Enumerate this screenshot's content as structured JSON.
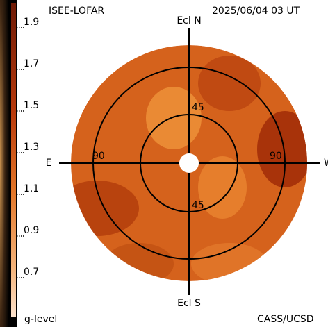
{
  "header": {
    "title": "ISEE-LOFAR",
    "timestamp": "2025/06/04 03 UT"
  },
  "colorbar": {
    "ticks": [
      "1.9",
      "1.7",
      "1.5",
      "1.3",
      "1.1",
      "0.9",
      "0.7"
    ],
    "label": "g-level"
  },
  "plot": {
    "north": "Ecl N",
    "south": "Ecl S",
    "east": "E",
    "west": "W",
    "ring_labels": {
      "top": "45",
      "bottom": "45",
      "left": "90",
      "right": "90"
    }
  },
  "credit": "CASS/UCSD"
}
